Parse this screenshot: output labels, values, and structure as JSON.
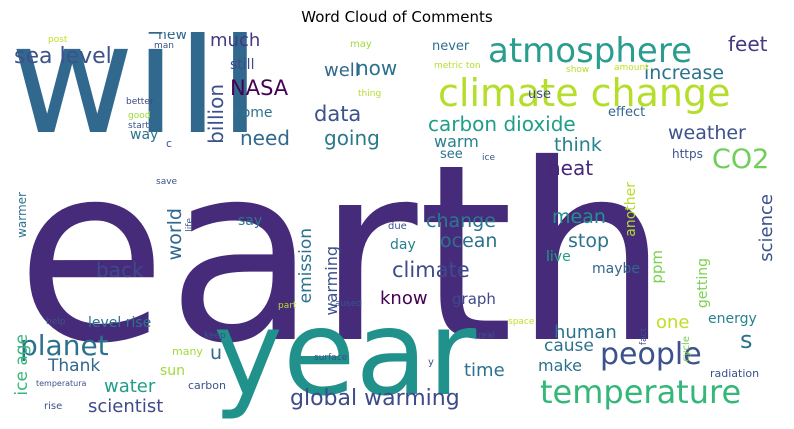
{
  "title": "Word Cloud of Comments",
  "words": [
    {
      "text": "earth",
      "color": "#472b7b"
    },
    {
      "text": "will",
      "color": "#31688e"
    },
    {
      "text": "year",
      "color": "#21918c"
    },
    {
      "text": "climate change",
      "color": "#b5de2b"
    },
    {
      "text": "atmosphere",
      "color": "#2a9d8f"
    },
    {
      "text": "temperature",
      "color": "#35b779"
    },
    {
      "text": "people",
      "color": "#3b528b"
    },
    {
      "text": "planet",
      "color": "#2c728e"
    },
    {
      "text": "global warming",
      "color": "#3e4a89"
    },
    {
      "text": "CO2",
      "color": "#6ece58"
    },
    {
      "text": "sea level",
      "color": "#3b528b"
    },
    {
      "text": "carbon dioxide",
      "color": "#1f9e89"
    },
    {
      "text": "NASA",
      "color": "#440154"
    },
    {
      "text": "data",
      "color": "#3b528b"
    },
    {
      "text": "going",
      "color": "#2a788e"
    },
    {
      "text": "increase",
      "color": "#2c728e"
    },
    {
      "text": "weather",
      "color": "#3b528b"
    },
    {
      "text": "feet",
      "color": "#443983"
    },
    {
      "text": "now",
      "color": "#2c728e"
    },
    {
      "text": "need",
      "color": "#31688e"
    },
    {
      "text": "billion",
      "color": "#3b528b"
    },
    {
      "text": "heat",
      "color": "#482878"
    },
    {
      "text": "think",
      "color": "#26828e"
    },
    {
      "text": "climate",
      "color": "#3e4a89"
    },
    {
      "text": "ocean",
      "color": "#2c728e"
    },
    {
      "text": "change",
      "color": "#2a788e"
    },
    {
      "text": "back",
      "color": "#3e4a89"
    },
    {
      "text": "world",
      "color": "#31688e"
    },
    {
      "text": "know",
      "color": "#440154"
    },
    {
      "text": "stop",
      "color": "#2c728e"
    },
    {
      "text": "mean",
      "color": "#21918c"
    },
    {
      "text": "human",
      "color": "#2c728e"
    },
    {
      "text": "cause",
      "color": "#2c728e"
    },
    {
      "text": "make",
      "color": "#2c728e"
    },
    {
      "text": "time",
      "color": "#2c728e"
    },
    {
      "text": "water",
      "color": "#1f9e89"
    },
    {
      "text": "scientist",
      "color": "#3e4a89"
    },
    {
      "text": "ice age",
      "color": "#35b779"
    },
    {
      "text": "Thank",
      "color": "#31688e"
    },
    {
      "text": "sun",
      "color": "#a0da39"
    },
    {
      "text": "u",
      "color": "#31688e"
    },
    {
      "text": "s",
      "color": "#2c728e"
    },
    {
      "text": "one",
      "color": "#bddf26"
    },
    {
      "text": "much",
      "color": "#443983"
    },
    {
      "text": "well",
      "color": "#31688e"
    },
    {
      "text": "warm",
      "color": "#26828e"
    },
    {
      "text": "emission",
      "color": "#2c728e"
    },
    {
      "text": "warming",
      "color": "#3b528b"
    },
    {
      "text": "level rise",
      "color": "#2c728e"
    },
    {
      "text": "graph",
      "color": "#3e4a89"
    },
    {
      "text": "energy",
      "color": "#26828e"
    },
    {
      "text": "science",
      "color": "#3b528b"
    },
    {
      "text": "ppm",
      "color": "#7ad151"
    },
    {
      "text": "getting",
      "color": "#7ad151"
    },
    {
      "text": "maybe",
      "color": "#31688e"
    },
    {
      "text": "live",
      "color": "#1f9e89"
    },
    {
      "text": "day",
      "color": "#26828e"
    },
    {
      "text": "say",
      "color": "#2a788e"
    },
    {
      "text": "another",
      "color": "#b5de2b"
    },
    {
      "text": "see",
      "color": "#2c728e"
    },
    {
      "text": "still",
      "color": "#3e4a89"
    },
    {
      "text": "come",
      "color": "#2c728e"
    },
    {
      "text": "way",
      "color": "#2c728e"
    },
    {
      "text": "new",
      "color": "#31688e"
    },
    {
      "text": "never",
      "color": "#2c728e"
    },
    {
      "text": "use",
      "color": "#3e4a89"
    },
    {
      "text": "effect",
      "color": "#31688e"
    },
    {
      "text": "https",
      "color": "#3b528b"
    },
    {
      "text": "radiation",
      "color": "#3b528b"
    },
    {
      "text": "warmer",
      "color": "#2c728e"
    },
    {
      "text": "carbon",
      "color": "#3b528b"
    },
    {
      "text": "many",
      "color": "#a0da39"
    },
    {
      "text": "rise",
      "color": "#3b528b"
    },
    {
      "text": "due",
      "color": "#3b528b"
    },
    {
      "text": "cycle",
      "color": "#7ad151"
    },
    {
      "text": "post",
      "color": "#c2df23"
    },
    {
      "text": "man",
      "color": "#3b528b"
    },
    {
      "text": "may",
      "color": "#a0da39"
    },
    {
      "text": "metric ton",
      "color": "#b5de2b"
    },
    {
      "text": "show",
      "color": "#b5de2b"
    },
    {
      "text": "amount",
      "color": "#c2df23"
    },
    {
      "text": "thing",
      "color": "#b5de2b"
    },
    {
      "text": "better",
      "color": "#3e4a89"
    },
    {
      "text": "good",
      "color": "#a0da39"
    },
    {
      "text": "start",
      "color": "#3b528b"
    },
    {
      "text": "c",
      "color": "#3b528b"
    },
    {
      "text": "ice",
      "color": "#3b528b"
    },
    {
      "text": "save",
      "color": "#3b528b"
    },
    {
      "text": "life",
      "color": "#3b528b"
    },
    {
      "text": "part",
      "color": "#b5de2b"
    },
    {
      "text": "caused",
      "color": "#3b528b"
    },
    {
      "text": "help",
      "color": "#3b528b"
    },
    {
      "text": "keep",
      "color": "#3b528b"
    },
    {
      "text": "temperatura",
      "color": "#3b528b"
    },
    {
      "text": "real",
      "color": "#3b528b"
    },
    {
      "text": "space",
      "color": "#c2df23"
    },
    {
      "text": "surface",
      "color": "#3b528b"
    },
    {
      "text": "fact",
      "color": "#3b528b"
    },
    {
      "text": "y",
      "color": "#3b528b"
    }
  ]
}
